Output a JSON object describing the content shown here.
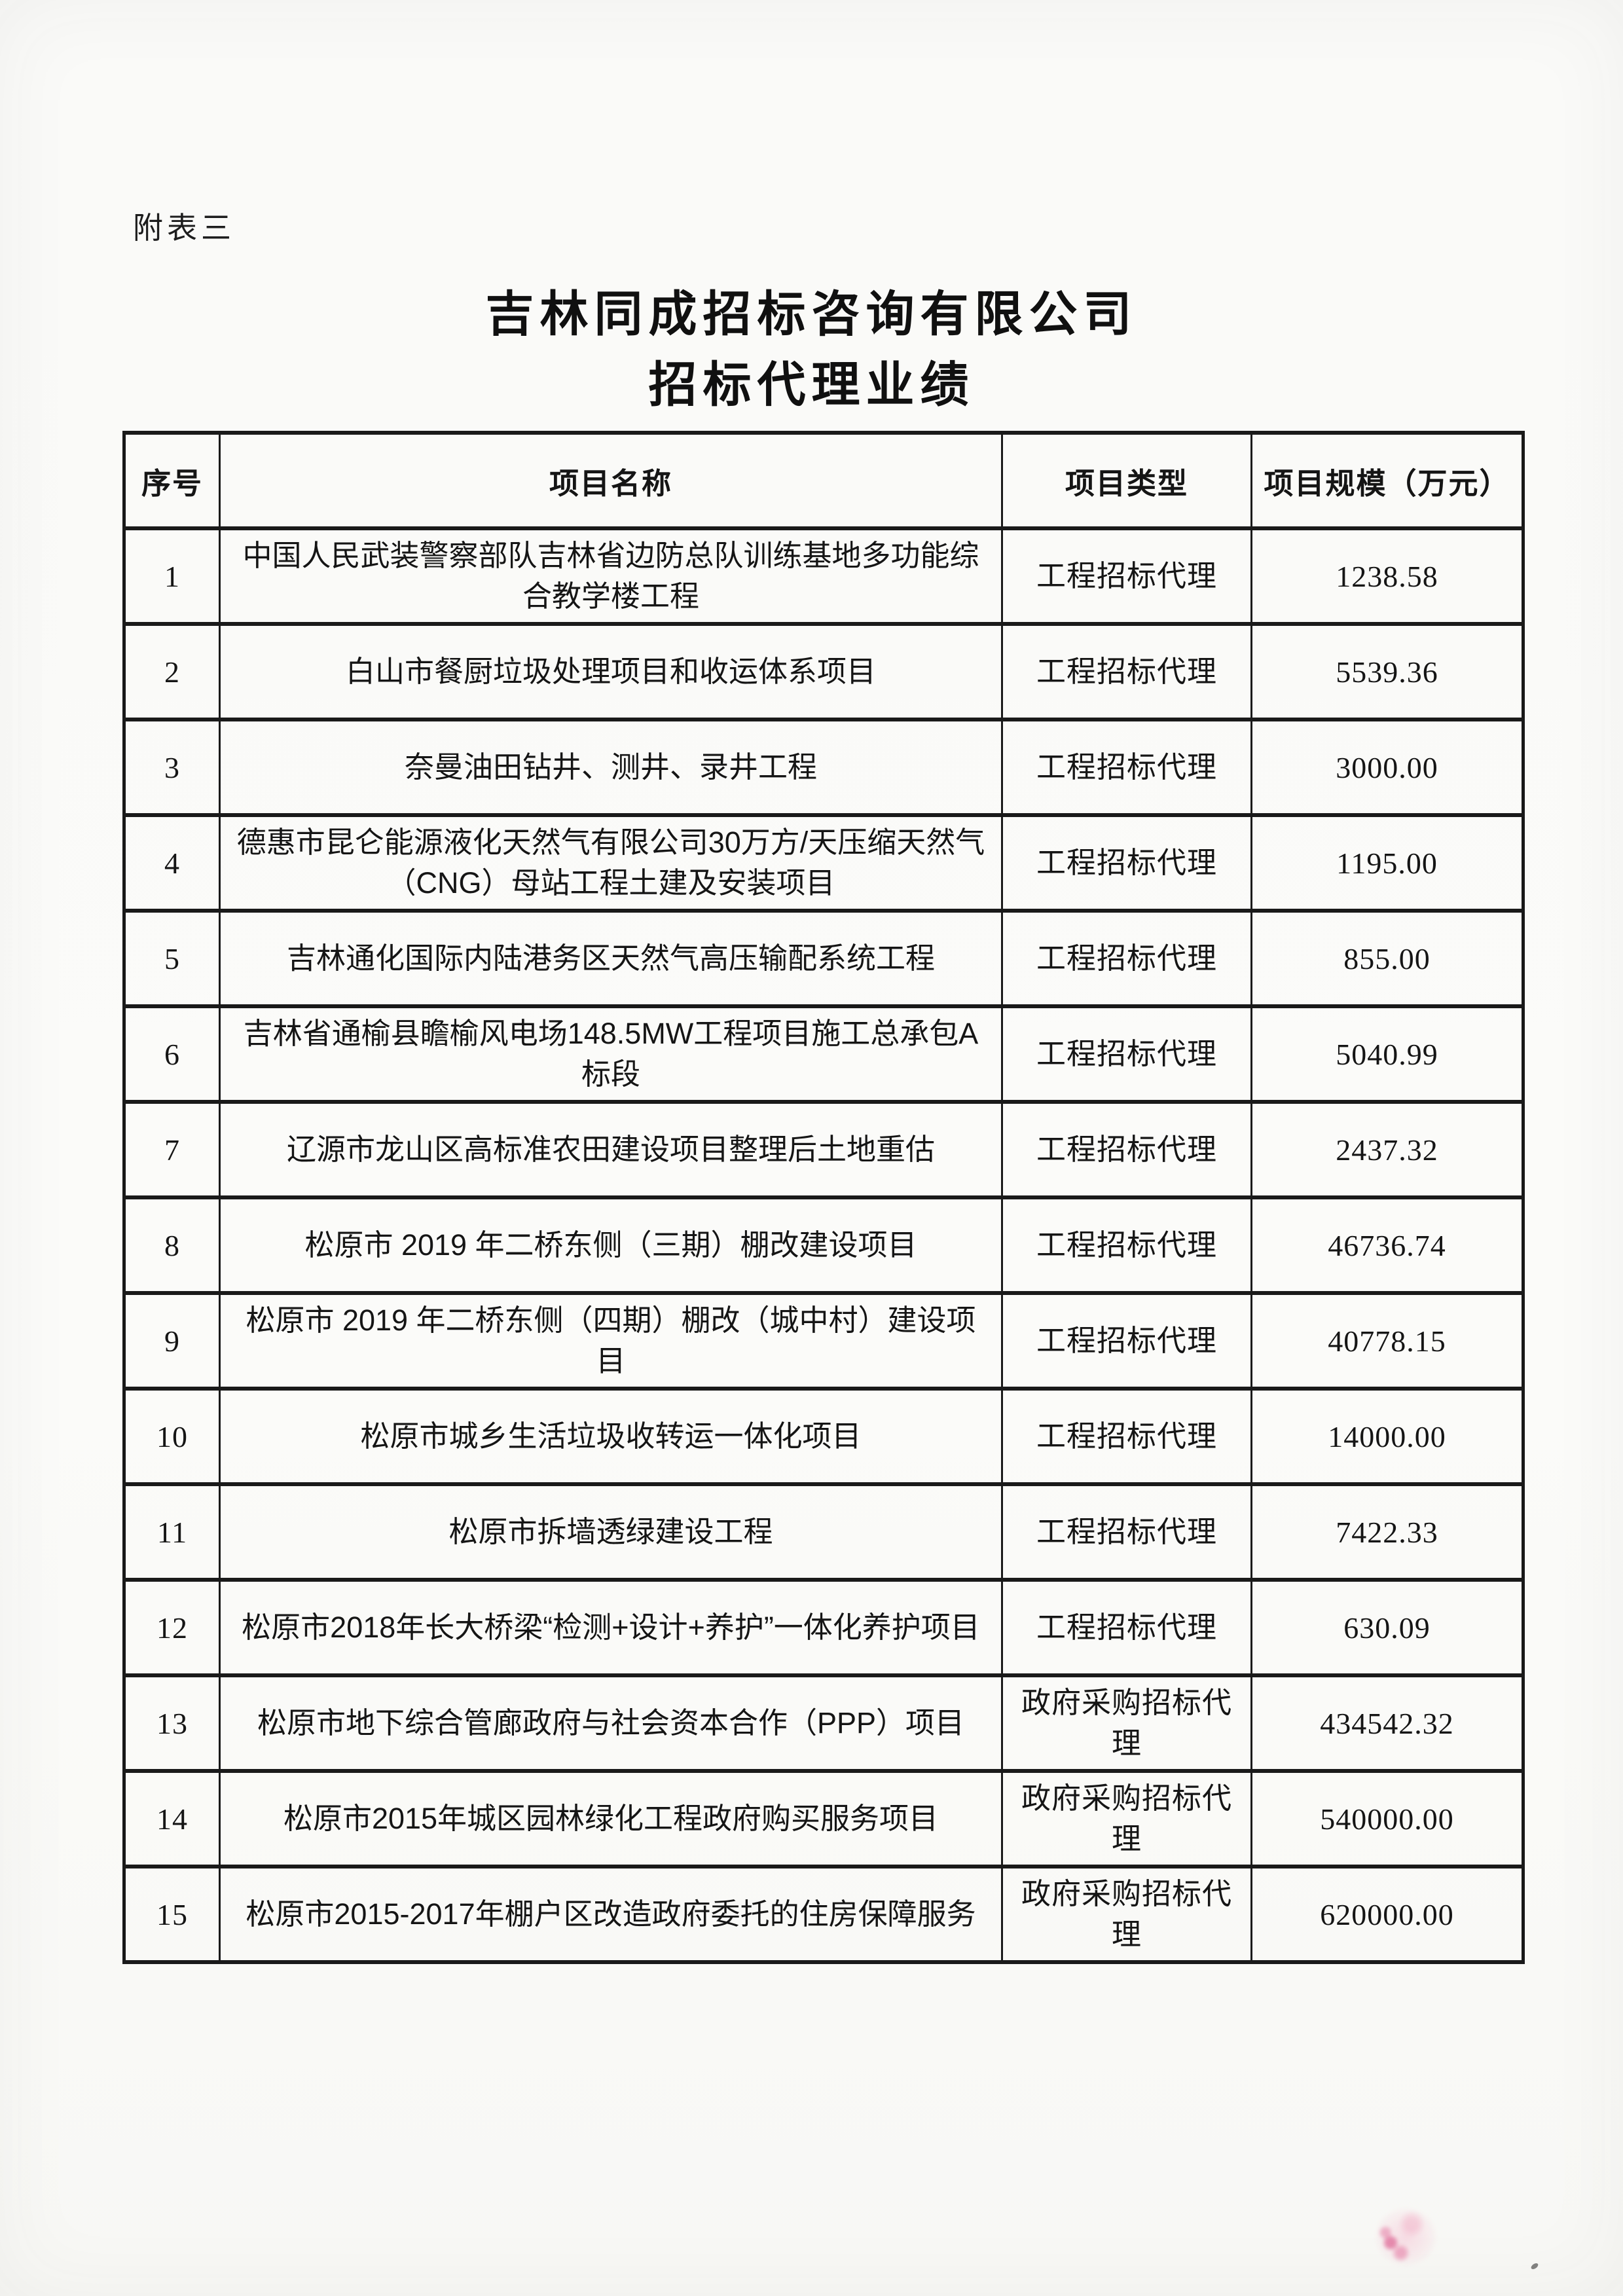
{
  "page": {
    "annotation": "附表三",
    "title_line1": "吉林同成招标咨询有限公司",
    "title_line2": "招标代理业绩"
  },
  "table": {
    "headers": [
      "序号",
      "项目名称",
      "项目类型",
      "项目规模（万元）"
    ],
    "rows": [
      {
        "no": "1",
        "name": "中国人民武装警察部队吉林省边防总队训练基地多功能综合教学楼工程",
        "type": "工程招标代理",
        "scale": "1238.58"
      },
      {
        "no": "2",
        "name": "白山市餐厨垃圾处理项目和收运体系项目",
        "type": "工程招标代理",
        "scale": "5539.36"
      },
      {
        "no": "3",
        "name": "奈曼油田钻井、测井、录井工程",
        "type": "工程招标代理",
        "scale": "3000.00"
      },
      {
        "no": "4",
        "name": "德惠市昆仑能源液化天然气有限公司30万方/天压缩天然气（CNG）母站工程土建及安装项目",
        "type": "工程招标代理",
        "scale": "1195.00"
      },
      {
        "no": "5",
        "name": "吉林通化国际内陆港务区天然气高压输配系统工程",
        "type": "工程招标代理",
        "scale": "855.00"
      },
      {
        "no": "6",
        "name": "吉林省通榆县瞻榆风电场148.5MW工程项目施工总承包A标段",
        "type": "工程招标代理",
        "scale": "5040.99"
      },
      {
        "no": "7",
        "name": "辽源市龙山区高标准农田建设项目整理后土地重估",
        "type": "工程招标代理",
        "scale": "2437.32"
      },
      {
        "no": "8",
        "name": "松原市 2019 年二桥东侧（三期）棚改建设项目",
        "type": "工程招标代理",
        "scale": "46736.74"
      },
      {
        "no": "9",
        "name": "松原市 2019 年二桥东侧（四期）棚改（城中村）建设项目",
        "type": "工程招标代理",
        "scale": "40778.15"
      },
      {
        "no": "10",
        "name": "松原市城乡生活垃圾收转运一体化项目",
        "type": "工程招标代理",
        "scale": "14000.00"
      },
      {
        "no": "11",
        "name": "松原市拆墙透绿建设工程",
        "type": "工程招标代理",
        "scale": "7422.33"
      },
      {
        "no": "12",
        "name": "松原市2018年长大桥梁“检测+设计+养护”一体化养护项目",
        "type": "工程招标代理",
        "scale": "630.09"
      },
      {
        "no": "13",
        "name": "松原市地下综合管廊政府与社会资本合作（PPP）项目",
        "type": "政府采购招标代理",
        "scale": "434542.32"
      },
      {
        "no": "14",
        "name": "松原市2015年城区园林绿化工程政府购买服务项目",
        "type": "政府采购招标代理",
        "scale": "540000.00"
      },
      {
        "no": "15",
        "name": "松原市2015-2017年棚户区改造政府委托的住房保障服务",
        "type": "政府采购招标代理",
        "scale": "620000.00"
      }
    ]
  }
}
